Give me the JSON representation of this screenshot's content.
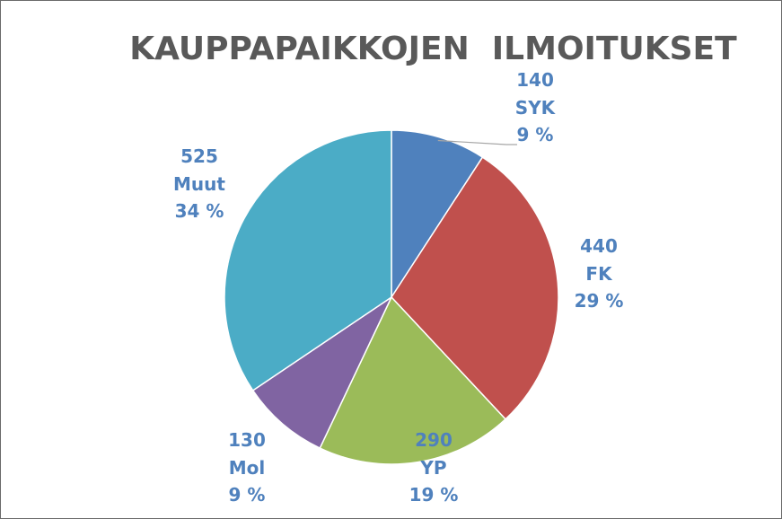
{
  "chart_data": {
    "type": "pie",
    "title": "KAUPPAPAIKKOJEN  ILMOITUKSET",
    "slices": [
      {
        "name": "SYK",
        "value": 140,
        "percent": "9 %",
        "color": "#4f81bd"
      },
      {
        "name": "FK",
        "value": 440,
        "percent": "29 %",
        "color": "#c0504d"
      },
      {
        "name": "YP",
        "value": 290,
        "percent": "19 %",
        "color": "#9bbb59"
      },
      {
        "name": "Mol",
        "value": 130,
        "percent": "9 %",
        "color": "#8064a2"
      },
      {
        "name": "Muut",
        "value": 525,
        "percent": "34 %",
        "color": "#4bacc6"
      }
    ],
    "label_color": "#4f81bd",
    "title_color": "#595959",
    "legend": "none"
  }
}
